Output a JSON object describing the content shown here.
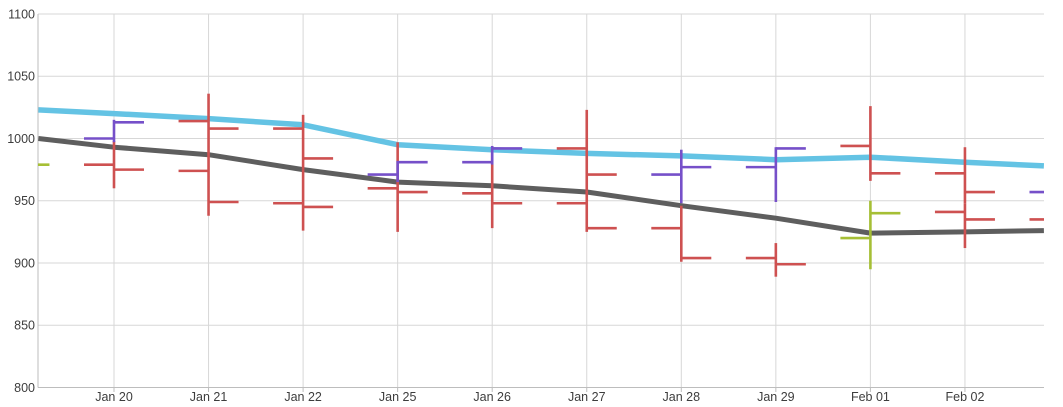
{
  "chart_data": {
    "type": "ohlc+line",
    "title": "",
    "xlabel": "",
    "ylabel": "",
    "grid": true,
    "legend": "none",
    "x_labels": [
      "Jan 20",
      "Jan 21",
      "Jan 22",
      "Jan 25",
      "Jan 26",
      "Jan 27",
      "Jan 28",
      "Jan 29",
      "Feb 01",
      "Feb 02"
    ],
    "y_ticks": [
      1100,
      1050,
      1000,
      950,
      900,
      850,
      800
    ],
    "ylim": [
      800,
      1100
    ],
    "colors": {
      "blue_line": "#64c3e4",
      "gray_line": "#5e5e5e",
      "red_ohlc": "#ce5151",
      "purple_ohlc": "#7650c9",
      "olive_ohlc": "#a6bf35",
      "gridline": "#d7d7d7",
      "axis": "#bdbdbd",
      "label_text": "#3d3d3d"
    },
    "line_series": [
      {
        "name": "blue-average-line",
        "color": "#64c3e4",
        "width": 5.5,
        "points": [
          {
            "x": -0.8,
            "v": 1023
          },
          {
            "x": 0,
            "v": 1020
          },
          {
            "x": 1,
            "v": 1016
          },
          {
            "x": 2,
            "v": 1011
          },
          {
            "x": 3,
            "v": 995
          },
          {
            "x": 4,
            "v": 991
          },
          {
            "x": 5,
            "v": 988
          },
          {
            "x": 6,
            "v": 986
          },
          {
            "x": 7,
            "v": 983
          },
          {
            "x": 8,
            "v": 985
          },
          {
            "x": 9,
            "v": 981
          },
          {
            "x": 9.835,
            "v": 978
          }
        ]
      },
      {
        "name": "gray-average-line",
        "color": "#5e5e5e",
        "width": 5,
        "points": [
          {
            "x": -0.8,
            "v": 1000
          },
          {
            "x": 0,
            "v": 993
          },
          {
            "x": 1,
            "v": 987
          },
          {
            "x": 2,
            "v": 975
          },
          {
            "x": 3,
            "v": 965
          },
          {
            "x": 4,
            "v": 962
          },
          {
            "x": 5,
            "v": 957
          },
          {
            "x": 6,
            "v": 946
          },
          {
            "x": 7,
            "v": 936
          },
          {
            "x": 8,
            "v": 924
          },
          {
            "x": 9,
            "v": 925
          },
          {
            "x": 9.835,
            "v": 926
          }
        ]
      }
    ],
    "ohlc_series": [
      {
        "name": "red-ohlc",
        "color": "#ce5151",
        "bars": [
          {
            "x": 0,
            "open": 979,
            "high": 998,
            "low": 960,
            "close": 975
          },
          {
            "x": 1,
            "open": 1014,
            "high": 1036,
            "low": 1002,
            "close": 1008
          },
          {
            "x": 1,
            "open": 974,
            "high": 1002,
            "low": 938,
            "close": 949
          },
          {
            "x": 2,
            "open": 1008,
            "high": 1019,
            "low": 975,
            "close": 984
          },
          {
            "x": 2,
            "open": 948,
            "high": 975,
            "low": 926,
            "close": 945
          },
          {
            "x": 3,
            "open": 960,
            "high": 997,
            "low": 925,
            "close": 957
          },
          {
            "x": 4,
            "open": 956,
            "high": 992,
            "low": 928,
            "close": 948
          },
          {
            "x": 5,
            "open": 992,
            "high": 1023,
            "low": 958,
            "close": 971
          },
          {
            "x": 5,
            "open": 948,
            "high": 958,
            "low": 925,
            "close": 928
          },
          {
            "x": 6,
            "open": 928,
            "high": 946,
            "low": 901,
            "close": 904
          },
          {
            "x": 7,
            "open": 904,
            "high": 916,
            "low": 889,
            "close": 899
          },
          {
            "x": 8,
            "open": 994,
            "high": 1026,
            "low": 966,
            "close": 972
          },
          {
            "x": 9,
            "open": 972,
            "high": 993,
            "low": 948,
            "close": 957
          },
          {
            "x": 9,
            "open": 941,
            "high": 948,
            "low": 912,
            "close": 935
          },
          {
            "x": 10,
            "open": 935
          }
        ]
      },
      {
        "name": "purple-ohlc",
        "color": "#7650c9",
        "bars": [
          {
            "x": 0,
            "open": 1000,
            "high": 1015,
            "low": 997,
            "close": 1013
          },
          {
            "x": 3,
            "open": 971,
            "high": 982,
            "low": 965,
            "close": 981
          },
          {
            "x": 4,
            "open": 981,
            "high": 994,
            "low": 979,
            "close": 992
          },
          {
            "x": 6,
            "open": 971,
            "high": 991,
            "low": 948,
            "close": 977
          },
          {
            "x": 7,
            "open": 977,
            "high": 993,
            "low": 949,
            "close": 992
          },
          {
            "x": 10,
            "open": 957
          }
        ]
      },
      {
        "name": "olive-ohlc",
        "color": "#a6bf35",
        "bars": [
          {
            "x": -1,
            "close": 979
          },
          {
            "x": 8,
            "open": 920,
            "high": 950,
            "low": 895,
            "close": 940
          }
        ]
      }
    ]
  }
}
